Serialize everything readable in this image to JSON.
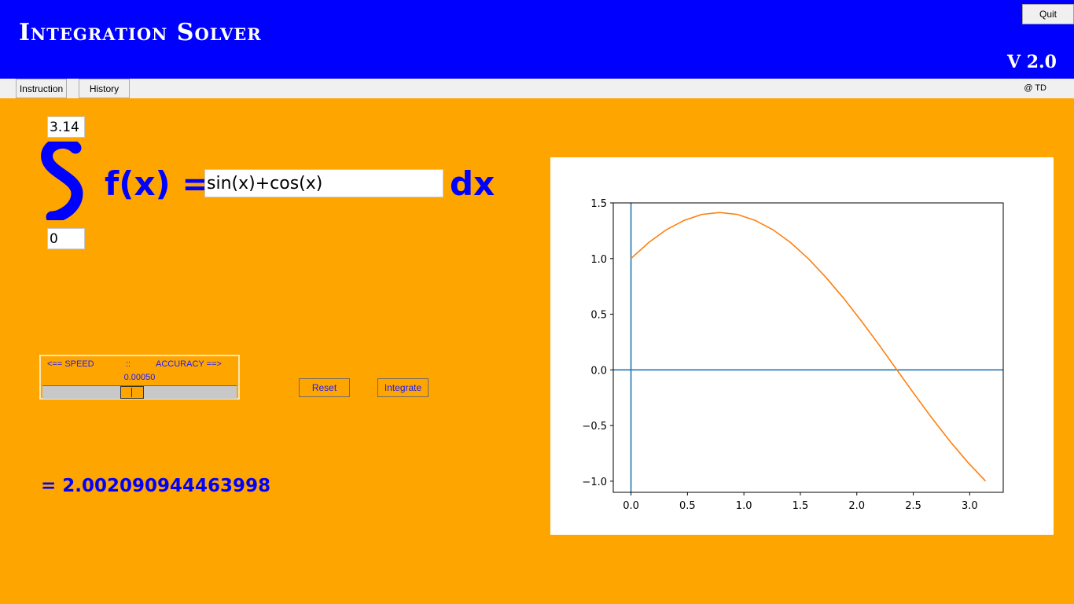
{
  "header": {
    "title": "Integration Solver",
    "version": "V 2.0",
    "quit_label": "Quit",
    "bg_color": "#0000ff"
  },
  "menu": {
    "instruction_label": "Instruction",
    "history_label": "History",
    "credit": "@ TD"
  },
  "integral": {
    "upper_limit": "3.14",
    "lower_limit": "0",
    "fx_label": "f(x) =",
    "function": "sin(x)+cos(x)",
    "dx_label": "dx"
  },
  "slider": {
    "left_caption": "<== SPEED",
    "separator": "::",
    "right_caption": "ACCURACY ==>",
    "value_text": "0.00050",
    "thumb_fraction": 0.458
  },
  "buttons": {
    "reset_label": "Reset",
    "integrate_label": "Integrate"
  },
  "result": {
    "text": "= 2.002090944463998"
  },
  "colors": {
    "background": "#ffa500",
    "accent": "#0000ff",
    "function_line": "#ff7f0e",
    "axis_line": "#1f77b4"
  },
  "chart_data": {
    "type": "line",
    "title": "",
    "xlabel": "",
    "ylabel": "",
    "xlim": [
      -0.157,
      3.297
    ],
    "ylim": [
      -1.1,
      1.5
    ],
    "x_ticks": [
      "0.0",
      "0.5",
      "1.0",
      "1.5",
      "2.0",
      "2.5",
      "3.0"
    ],
    "x_tick_values": [
      0.0,
      0.5,
      1.0,
      1.5,
      2.0,
      2.5,
      3.0
    ],
    "y_ticks": [
      "1.5",
      "1.0",
      "0.5",
      "0.0",
      "−0.5",
      "−1.0"
    ],
    "y_tick_values": [
      1.5,
      1.0,
      0.5,
      0.0,
      -0.5,
      -1.0
    ],
    "series": [
      {
        "function": "sin(x)+cos(x)",
        "x": [
          0.0,
          0.157,
          0.314,
          0.471,
          0.628,
          0.785,
          0.942,
          1.099,
          1.256,
          1.413,
          1.57,
          1.727,
          1.884,
          2.041,
          2.198,
          2.355,
          2.512,
          2.669,
          2.826,
          2.983,
          3.14
        ],
        "y": [
          1.0,
          1.144,
          1.26,
          1.343,
          1.397,
          1.414,
          1.397,
          1.343,
          1.26,
          1.144,
          1.0,
          0.831,
          0.643,
          0.438,
          0.223,
          0.0,
          -0.222,
          -0.438,
          -0.643,
          -0.83,
          -0.999
        ]
      }
    ],
    "axis_lines": {
      "vertical_x": 0.0,
      "horizontal_y": 0.0
    },
    "grid": false
  }
}
